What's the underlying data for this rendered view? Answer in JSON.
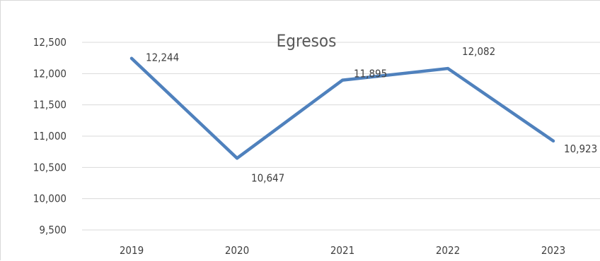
{
  "chart_data": {
    "type": "line",
    "title": "Egresos",
    "xlabel": "",
    "ylabel": "",
    "categories": [
      "2019",
      "2020",
      "2021",
      "2022",
      "2023"
    ],
    "series": [
      {
        "values": [
          12244,
          10647,
          11895,
          12082,
          10923
        ]
      }
    ],
    "data_labels": [
      "12,244",
      "10,647",
      "11,895",
      "12,082",
      "10,923"
    ],
    "ylim": [
      9500,
      12500
    ],
    "yticks": [
      9500,
      10000,
      10500,
      11000,
      11500,
      12000,
      12500
    ],
    "ytick_labels": [
      "9,500",
      "10,000",
      "10,500",
      "11,000",
      "11,500",
      "12,000",
      "12,500"
    ],
    "grid": true,
    "legend": "none",
    "colors": {
      "line": "#4f81bd",
      "grid": "#d9d9d9",
      "text": "#404040",
      "title": "#595959"
    }
  }
}
